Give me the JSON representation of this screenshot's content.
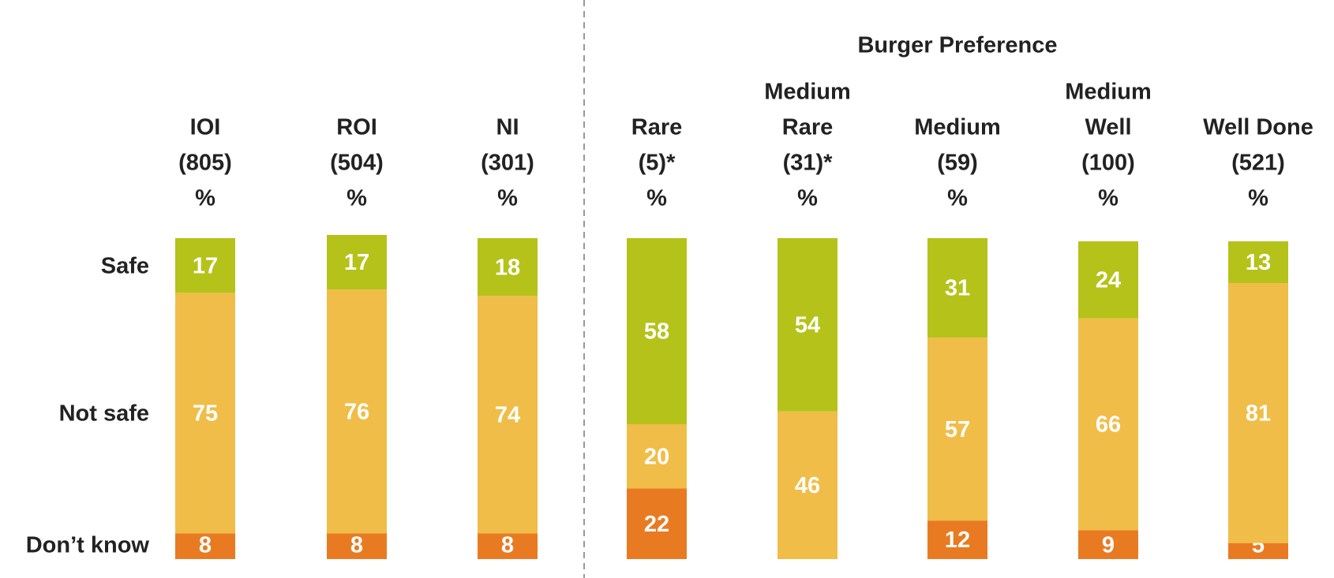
{
  "chart_data": {
    "type": "stacked_bar",
    "group_label": "Burger Preference",
    "categories": [
      [
        "IOI",
        "(805)",
        "%"
      ],
      [
        "ROI",
        "(504)",
        "%"
      ],
      [
        "NI",
        "(301)",
        "%"
      ],
      [
        "Rare",
        "(5)*",
        "%"
      ],
      [
        "Medium",
        "Rare",
        "(31)*",
        "%"
      ],
      [
        "Medium",
        "(59)",
        "%"
      ],
      [
        "Medium",
        "Well",
        "(100)",
        "%"
      ],
      [
        "Well Done",
        "(521)",
        "%"
      ]
    ],
    "series": [
      {
        "name": "Don’t know",
        "color": "#e87b22",
        "values": [
          8,
          8,
          8,
          22,
          0,
          12,
          9,
          5
        ],
        "value_labels": [
          "8",
          "8",
          "8",
          "22",
          "-",
          "12",
          "9",
          "5"
        ]
      },
      {
        "name": "Not safe",
        "color": "#f0bd48",
        "values": [
          75,
          76,
          74,
          20,
          46,
          57,
          66,
          81
        ]
      },
      {
        "name": "Safe",
        "color": "#b5c21a",
        "values": [
          17,
          17,
          18,
          58,
          54,
          31,
          24,
          13
        ]
      }
    ]
  }
}
